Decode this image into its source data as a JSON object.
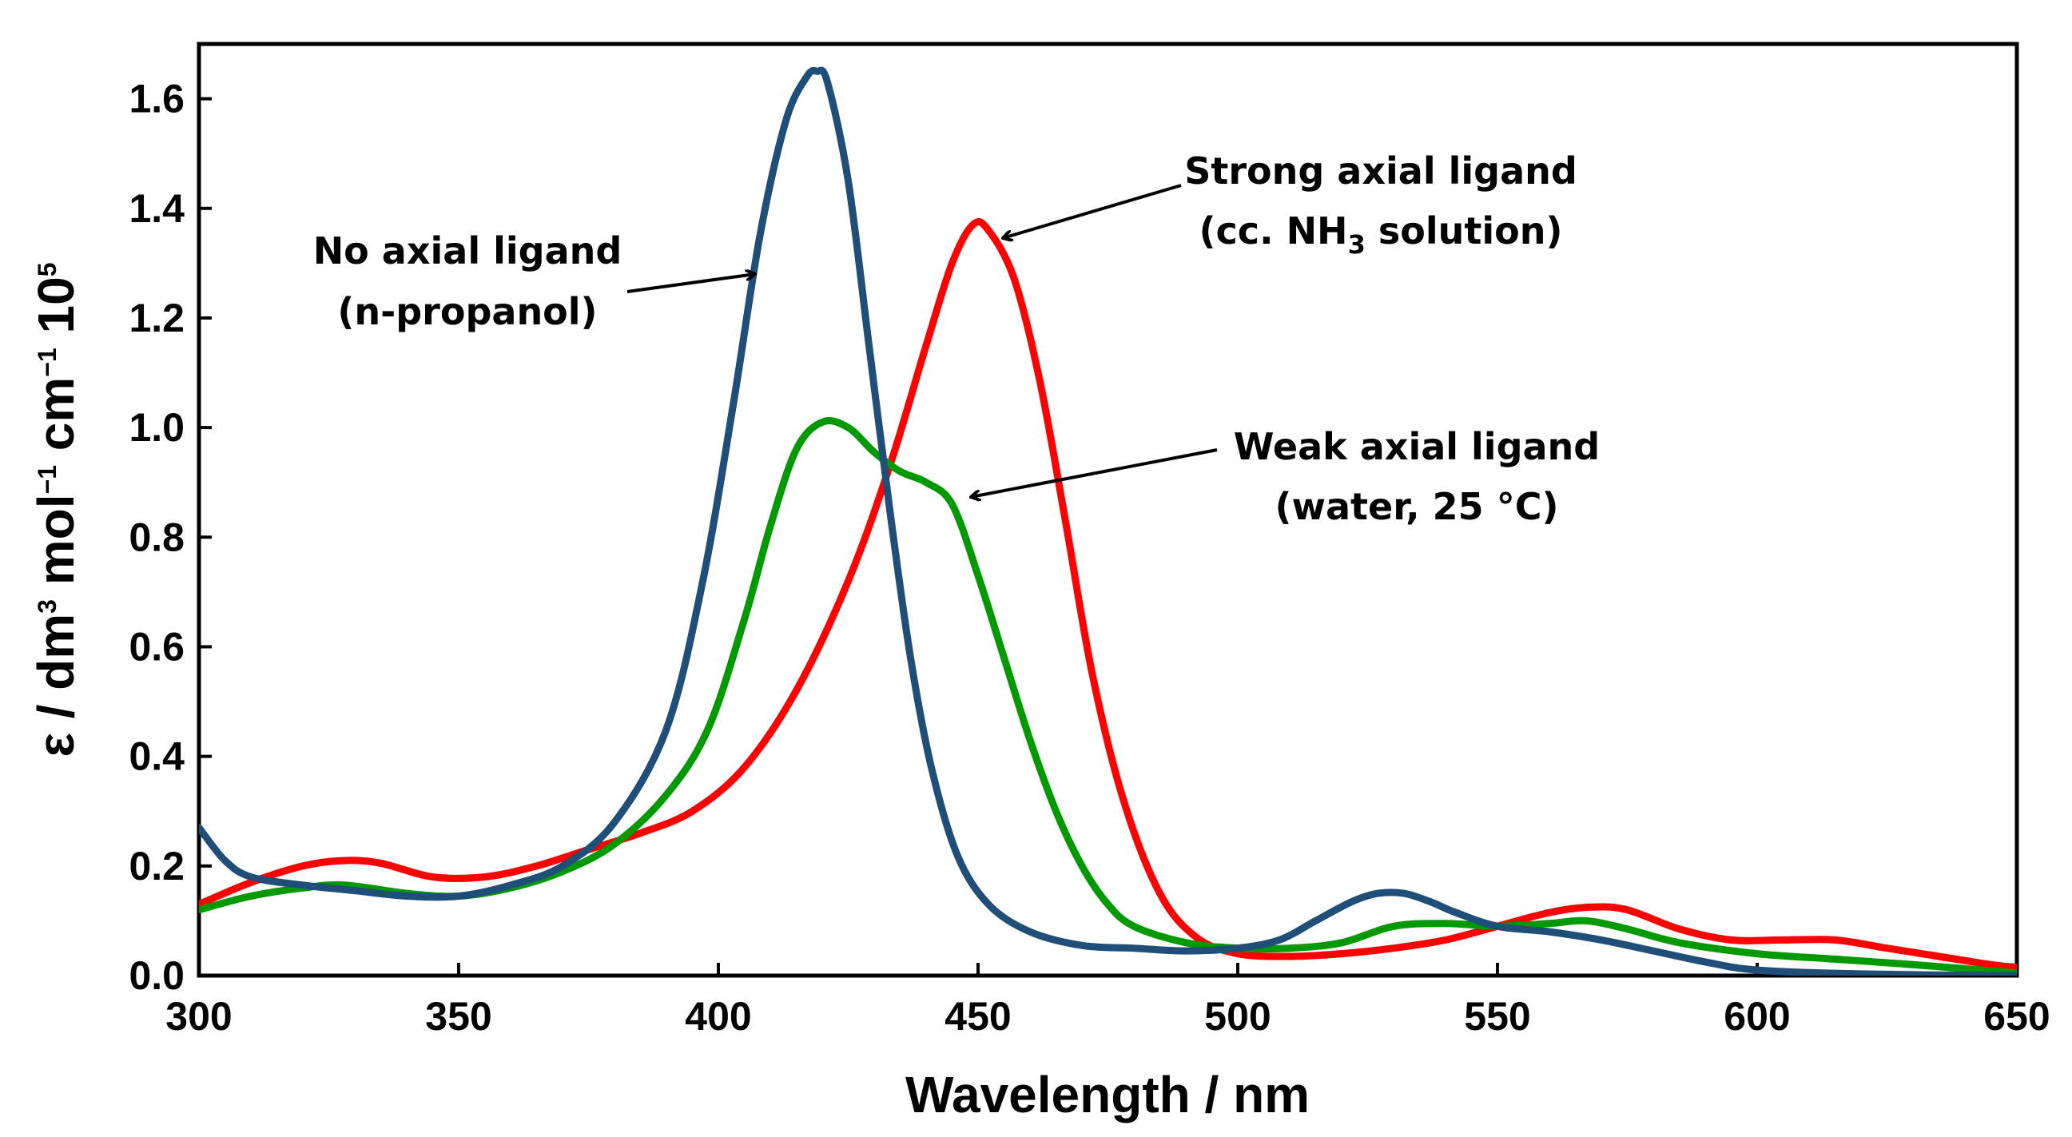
{
  "chart_data": {
    "type": "line",
    "xlabel": "Wavelength / nm",
    "ylabel": {
      "main": "ε / dm",
      "sup1": "3",
      "mid1": " mol",
      "sup2": "−1",
      "mid2": " cm",
      "sup3": "−1",
      "mid3": " 10",
      "sup4": "5"
    },
    "xlim": [
      300,
      650
    ],
    "ylim": [
      0,
      1.7
    ],
    "xticks": [
      300,
      350,
      400,
      450,
      500,
      550,
      600,
      650
    ],
    "xtick_labels": [
      "300",
      "350",
      "400",
      "450",
      "500",
      "550",
      "600",
      "650"
    ],
    "yticks": [
      0,
      0.2,
      0.4,
      0.6,
      0.8,
      1.0,
      1.2,
      1.4,
      1.6
    ],
    "ytick_labels": [
      "0.0",
      "0.2",
      "0.4",
      "0.6",
      "0.8",
      "1.0",
      "1.2",
      "1.4",
      "1.6"
    ],
    "grid": false,
    "legend": "none",
    "series": [
      {
        "color": "#ff0000",
        "x": [
          300,
          310,
          320,
          328,
          335,
          345,
          355,
          365,
          375,
          385,
          395,
          405,
          415,
          425,
          433,
          440,
          445,
          449,
          452,
          457,
          462,
          467,
          472,
          478,
          485,
          492,
          500,
          510,
          520,
          530,
          540,
          550,
          560,
          568,
          575,
          585,
          595,
          605,
          615,
          625,
          635,
          645,
          650
        ],
        "y": [
          0.13,
          0.17,
          0.2,
          0.21,
          0.205,
          0.18,
          0.18,
          0.2,
          0.23,
          0.26,
          0.3,
          0.38,
          0.52,
          0.72,
          0.93,
          1.15,
          1.3,
          1.37,
          1.36,
          1.27,
          1.08,
          0.82,
          0.55,
          0.32,
          0.15,
          0.07,
          0.04,
          0.035,
          0.04,
          0.05,
          0.065,
          0.09,
          0.115,
          0.125,
          0.12,
          0.085,
          0.065,
          0.065,
          0.065,
          0.05,
          0.035,
          0.02,
          0.015
        ]
      },
      {
        "color": "#009900",
        "x": [
          300,
          310,
          320,
          328,
          340,
          350,
          360,
          370,
          380,
          390,
          398,
          405,
          410,
          415,
          420,
          425,
          430,
          435,
          440,
          445,
          450,
          455,
          460,
          465,
          470,
          475,
          480,
          490,
          500,
          510,
          520,
          530,
          540,
          550,
          560,
          567,
          575,
          585,
          600,
          615,
          630,
          650
        ],
        "y": [
          0.12,
          0.145,
          0.16,
          0.165,
          0.15,
          0.145,
          0.16,
          0.19,
          0.24,
          0.33,
          0.45,
          0.65,
          0.82,
          0.96,
          1.01,
          1.0,
          0.955,
          0.92,
          0.9,
          0.86,
          0.73,
          0.58,
          0.43,
          0.3,
          0.2,
          0.13,
          0.09,
          0.06,
          0.05,
          0.05,
          0.06,
          0.09,
          0.095,
          0.09,
          0.095,
          0.1,
          0.085,
          0.06,
          0.04,
          0.03,
          0.02,
          0.005
        ]
      },
      {
        "color": "#1f4e79",
        "x": [
          300,
          305,
          310,
          320,
          330,
          340,
          350,
          360,
          370,
          380,
          390,
          397,
          403,
          408,
          413,
          417,
          419,
          421,
          425,
          429,
          433,
          437,
          441,
          446,
          452,
          460,
          470,
          480,
          490,
          500,
          508,
          515,
          522,
          527,
          532,
          537,
          542,
          550,
          560,
          570,
          580,
          590,
          600,
          620,
          650
        ],
        "y": [
          0.27,
          0.21,
          0.18,
          0.165,
          0.155,
          0.145,
          0.145,
          0.165,
          0.2,
          0.28,
          0.45,
          0.72,
          1.05,
          1.35,
          1.56,
          1.64,
          1.65,
          1.63,
          1.45,
          1.15,
          0.85,
          0.58,
          0.38,
          0.22,
          0.13,
          0.08,
          0.055,
          0.05,
          0.045,
          0.05,
          0.065,
          0.1,
          0.135,
          0.15,
          0.15,
          0.135,
          0.115,
          0.09,
          0.08,
          0.065,
          0.045,
          0.025,
          0.01,
          0.003,
          0.0
        ]
      }
    ],
    "annotations": [
      {
        "line1": "No axial ligand",
        "line2": "(n-propanol)",
        "arrow_to": [
          411,
          1.27
        ]
      },
      {
        "line1": "Strong axial ligand",
        "line2_pre": "(cc. NH",
        "line2_sub": "3",
        "line2_post": " solution)",
        "arrow_to": [
          454,
          1.36
        ]
      },
      {
        "line1": "Weak axial ligand",
        "line2": "(water, 25 °C)",
        "arrow_to": [
          447,
          0.875
        ]
      }
    ]
  }
}
